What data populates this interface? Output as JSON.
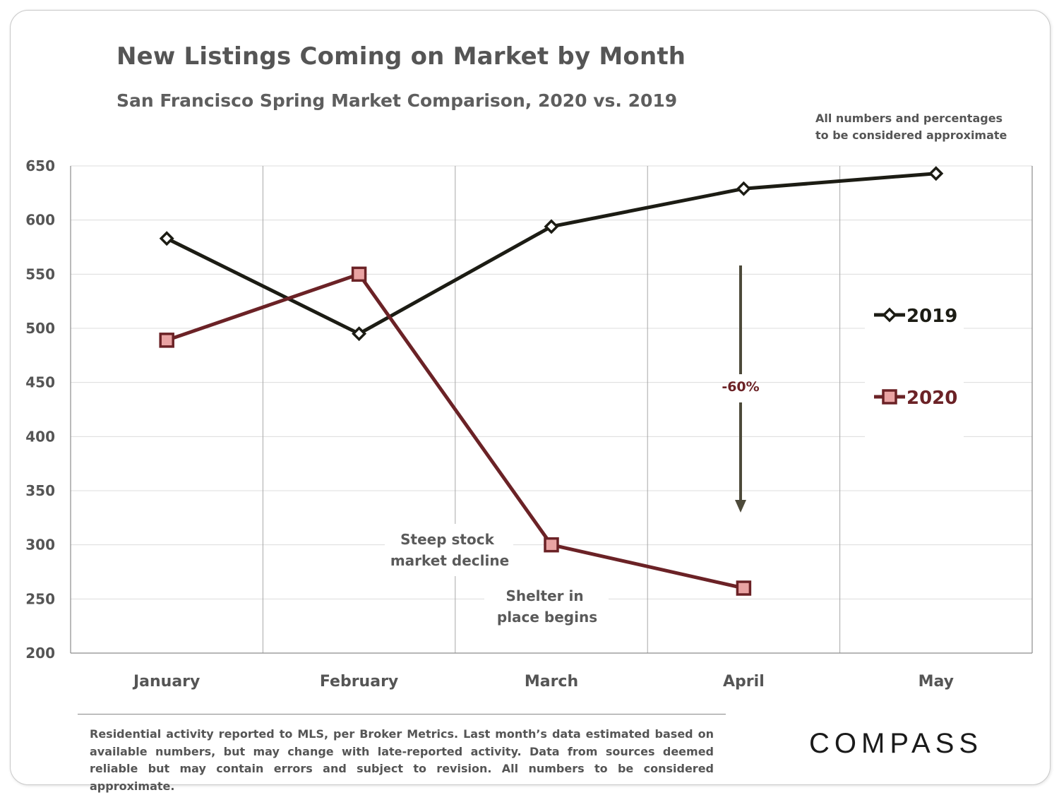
{
  "chart_data": {
    "type": "line",
    "title": "New Listings Coming on Market by Month",
    "subtitle": "San Francisco Spring Market Comparison, 2020 vs. 2019",
    "note": [
      "All numbers and percentages",
      "to be considered approximate"
    ],
    "categories": [
      "January",
      "February",
      "March",
      "April",
      "May"
    ],
    "ylim": [
      200,
      650
    ],
    "yticks": [
      200,
      250,
      300,
      350,
      400,
      450,
      500,
      550,
      600,
      650
    ],
    "grid": true,
    "legend": "right",
    "series": [
      {
        "name": "2019",
        "color": "#1c1c14",
        "marker": "diamond",
        "values": [
          583,
          495,
          594,
          629,
          643
        ]
      },
      {
        "name": "2020",
        "color": "#6b2226",
        "marker": "square",
        "fill": "#e9a3a3",
        "values": [
          489,
          550,
          300,
          260,
          null
        ]
      }
    ],
    "annotations": {
      "stock_decline": [
        "Steep stock",
        "market decline"
      ],
      "shelter": [
        "Shelter in",
        "place  begins"
      ],
      "pct_change": "-60%"
    }
  },
  "footnote": "Residential activity reported to MLS, per Broker Metrics. Last month’s data estimated based on available numbers, but may change with late-reported activity. Data from sources deemed reliable but may contain errors and subject to revision. All numbers to be considered approximate.",
  "brand": "COMPASS",
  "colors": {
    "arrow": "#4d4a3a",
    "grid": "#dcdcdc",
    "vgrid": "#a8a8a8",
    "axis": "#8c8c8c"
  }
}
